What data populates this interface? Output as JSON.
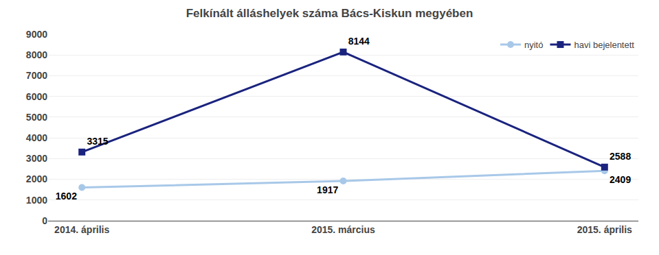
{
  "chart_data": {
    "type": "line",
    "title": "Felkínált álláshelyek száma Bács-Kiskun megyében",
    "categories": [
      "2014. április",
      "2015. március",
      "2015. április"
    ],
    "series": [
      {
        "name": "nyitó",
        "color": "#a8c8e8",
        "marker": "circle",
        "values": [
          1602,
          1917,
          2409
        ]
      },
      {
        "name": "havi bejelentett",
        "color": "#1a237e",
        "marker": "square",
        "values": [
          3315,
          8144,
          2588
        ]
      }
    ],
    "ylim": [
      0,
      9000
    ],
    "yticks": [
      0,
      1000,
      2000,
      3000,
      4000,
      5000,
      6000,
      7000,
      8000,
      9000
    ],
    "grid": true,
    "legend": "upper right",
    "data_labels": true
  }
}
